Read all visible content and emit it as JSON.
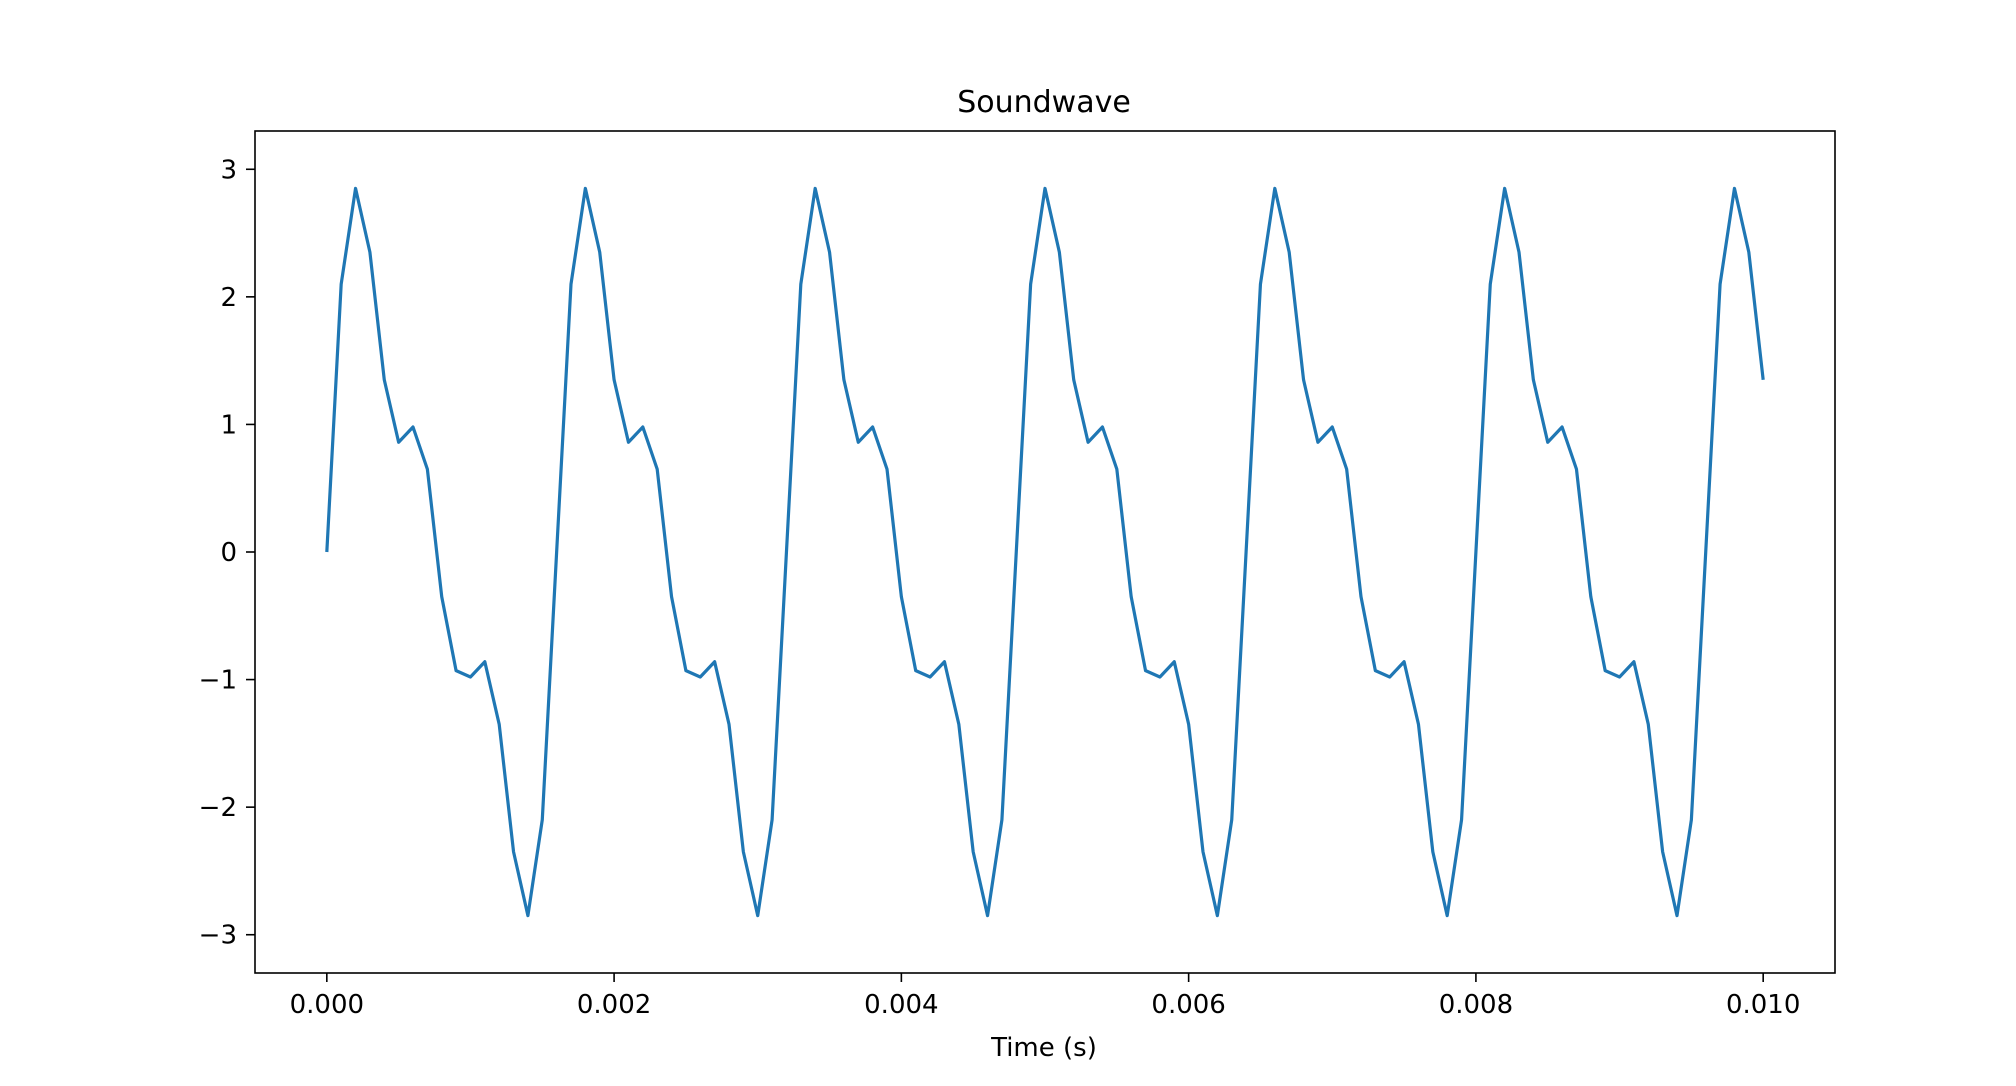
{
  "chart_data": {
    "type": "line",
    "title": "Soundwave",
    "xlabel": "Time (s)",
    "ylabel": "",
    "xlim": [
      -0.0005,
      0.0105
    ],
    "ylim": [
      -3.3,
      3.3
    ],
    "xticks": [
      0.0,
      0.002,
      0.004,
      0.006,
      0.008,
      0.01
    ],
    "xtick_labels": [
      "0.000",
      "0.002",
      "0.004",
      "0.006",
      "0.008",
      "0.010"
    ],
    "yticks": [
      -3,
      -2,
      -1,
      0,
      1,
      2,
      3
    ],
    "ytick_labels": [
      "−3",
      "−2",
      "−1",
      "0",
      "1",
      "2",
      "3"
    ],
    "grid": false,
    "legend": "none",
    "series": [
      {
        "color": "#1f77b4",
        "x": [
          0.0,
          0.0001,
          0.0002,
          0.0003,
          0.0004,
          0.0005,
          0.0006,
          0.0007,
          0.0008,
          0.0009,
          0.001,
          0.0011,
          0.0012,
          0.0013,
          0.0014,
          0.0015,
          0.0016,
          0.0017,
          0.0018,
          0.0019,
          0.002,
          0.0021,
          0.0022,
          0.0023,
          0.0024,
          0.0025,
          0.0026,
          0.0027,
          0.0028,
          0.0029,
          0.003,
          0.0031,
          0.0032,
          0.0033,
          0.0034,
          0.0035,
          0.0036,
          0.0037,
          0.0038,
          0.0039,
          0.004,
          0.0041,
          0.0042,
          0.0043,
          0.0044,
          0.0045,
          0.0046,
          0.0047,
          0.0048,
          0.0049,
          0.005,
          0.0051,
          0.0052,
          0.0053,
          0.0054,
          0.0055,
          0.0056,
          0.0057,
          0.0058,
          0.0059,
          0.006,
          0.0061,
          0.0062,
          0.0063,
          0.0064,
          0.0065,
          0.0066,
          0.0067,
          0.0068,
          0.0069,
          0.007,
          0.0071,
          0.0072,
          0.0073,
          0.0074,
          0.0075,
          0.0076,
          0.0077,
          0.0078,
          0.0079,
          0.008,
          0.0081,
          0.0082,
          0.0083,
          0.0084,
          0.0085,
          0.0086,
          0.0087,
          0.0088,
          0.0089,
          0.009,
          0.0091,
          0.0092,
          0.0093,
          0.0094,
          0.0095,
          0.0096,
          0.0097,
          0.0098,
          0.0099,
          0.01
        ],
        "y": [
          0.0,
          2.1,
          2.85,
          2.35,
          1.35,
          0.86,
          0.98,
          0.65,
          -0.35,
          -0.93,
          -0.98,
          -0.86,
          -1.35,
          -2.35,
          -2.85,
          -2.1,
          0.0,
          2.1,
          2.85,
          2.35,
          1.35,
          0.86,
          0.98,
          0.65,
          -0.35,
          -0.93,
          -0.98,
          -0.86,
          -1.35,
          -2.35,
          -2.85,
          -2.1,
          0.0,
          2.1,
          2.85,
          2.35,
          1.35,
          0.86,
          0.98,
          0.65,
          -0.35,
          -0.93,
          -0.98,
          -0.86,
          -1.35,
          -2.35,
          -2.85,
          -2.1,
          0.0,
          2.1,
          2.85,
          2.35,
          1.35,
          0.86,
          0.98,
          0.65,
          -0.35,
          -0.93,
          -0.98,
          -0.86,
          -1.35,
          -2.35,
          -2.85,
          -2.1,
          0.0,
          2.1,
          2.85,
          2.35,
          1.35,
          0.86,
          0.98,
          0.65,
          -0.35,
          -0.93,
          -0.98,
          -0.86,
          -1.35,
          -2.35,
          -2.85,
          -2.1,
          0.0,
          2.1,
          2.85,
          2.35,
          1.35,
          0.86,
          0.98,
          0.65,
          -0.35,
          -0.93,
          -0.98,
          -0.86,
          -1.35,
          -2.35,
          -2.85,
          -2.1,
          0.0,
          2.1,
          2.85,
          2.35,
          1.35
        ]
      }
    ]
  }
}
